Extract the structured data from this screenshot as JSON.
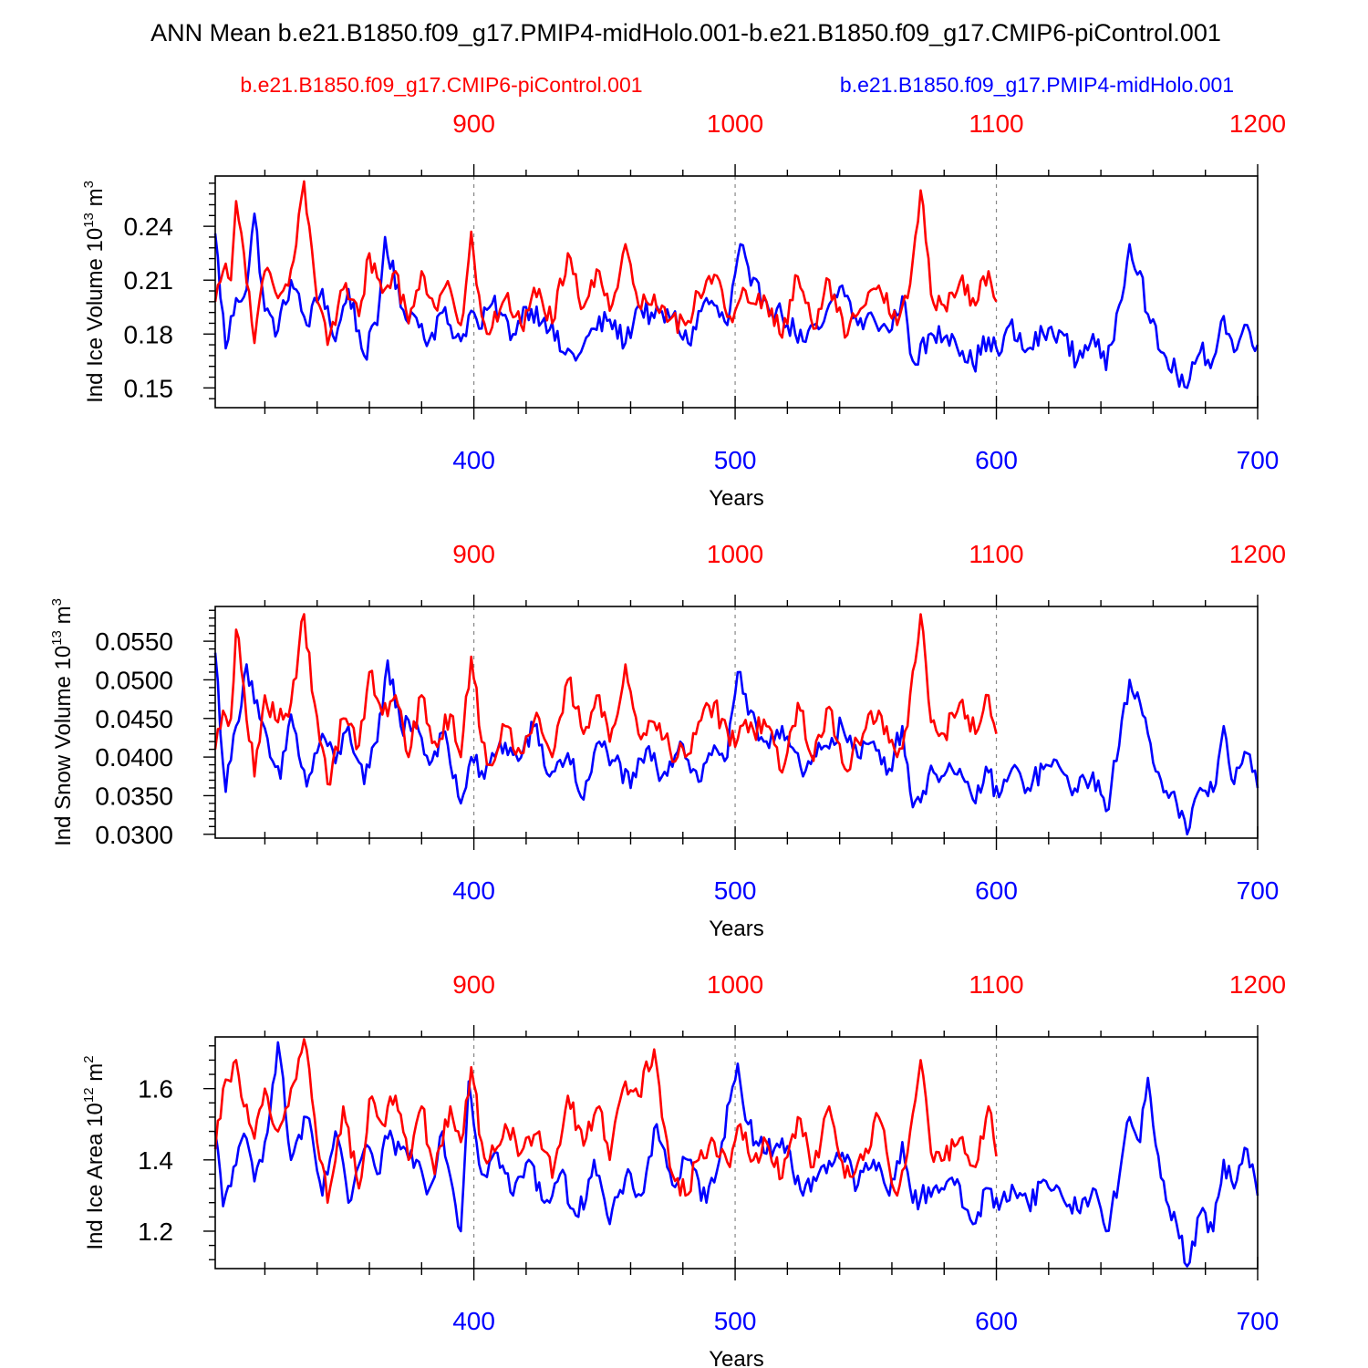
{
  "title": "ANN Mean b.e21.B1850.f09_g17.PMIP4-midHolo.001-b.e21.B1850.f09_g17.CMIP6-piControl.001",
  "legend": {
    "red_case": "b.e21.B1850.f09_g17.CMIP6-piControl.001",
    "blue_case": "b.e21.B1850.f09_g17.PMIP4-midHolo.001"
  },
  "colors": {
    "red": "#ff0000",
    "blue": "#0000ff",
    "axis": "#000000",
    "grid": "#888888"
  },
  "chart_data": [
    {
      "type": "line",
      "ylabel": "Ind Ice Volume",
      "yunit_html": "10<sup>13</sup> m<sup>3</sup>",
      "ylabel_text": "Ind Ice Volume 10^13 m^3",
      "xlabel": "Years",
      "bottom_axis": {
        "range": [
          301,
          700
        ],
        "ticks": [
          400,
          500,
          600,
          700
        ],
        "tick_labels": [
          "400",
          "500",
          "600",
          "700"
        ]
      },
      "top_axis": {
        "range": [
          801,
          1200
        ],
        "ticks": [
          900,
          1000,
          1100,
          1200
        ],
        "tick_labels": [
          "900",
          "1000",
          "1100",
          "1200"
        ]
      },
      "ylim": [
        0.139,
        0.268
      ],
      "yticks": [
        0.15,
        0.18,
        0.21,
        0.24
      ],
      "ytick_labels": [
        "0.15",
        "0.18",
        "0.21",
        "0.24"
      ],
      "series": [
        {
          "name": "b.e21.B1850.f09_g17.PMIP4-midHolo.001",
          "color": "blue",
          "axis": "bottom",
          "anchors_x": [
            301,
            305,
            309,
            313,
            316,
            320,
            325,
            330,
            336,
            342,
            347,
            352,
            358,
            363,
            366,
            372,
            378,
            383,
            388,
            395,
            399,
            402,
            407,
            415,
            420,
            427,
            434,
            440,
            446,
            452,
            458,
            463,
            469,
            476,
            482,
            489,
            497,
            502,
            506,
            511,
            518,
            526,
            533,
            541,
            547,
            553,
            559,
            564,
            568,
            576,
            583,
            591,
            597,
            601,
            605,
            611,
            618,
            624,
            631,
            637,
            642,
            647,
            651,
            655,
            658,
            663,
            669,
            673,
            678,
            683,
            687,
            691,
            696,
            700
          ],
          "anchors_y": [
            0.236,
            0.172,
            0.2,
            0.205,
            0.247,
            0.193,
            0.182,
            0.21,
            0.185,
            0.205,
            0.176,
            0.205,
            0.168,
            0.185,
            0.234,
            0.195,
            0.189,
            0.177,
            0.192,
            0.176,
            0.193,
            0.183,
            0.197,
            0.18,
            0.195,
            0.189,
            0.17,
            0.168,
            0.183,
            0.188,
            0.175,
            0.196,
            0.189,
            0.19,
            0.175,
            0.2,
            0.185,
            0.23,
            0.207,
            0.2,
            0.19,
            0.176,
            0.184,
            0.207,
            0.185,
            0.189,
            0.181,
            0.201,
            0.165,
            0.179,
            0.18,
            0.163,
            0.178,
            0.168,
            0.185,
            0.17,
            0.18,
            0.182,
            0.165,
            0.18,
            0.16,
            0.196,
            0.23,
            0.215,
            0.191,
            0.17,
            0.158,
            0.15,
            0.17,
            0.166,
            0.19,
            0.17,
            0.185,
            0.174
          ]
        },
        {
          "name": "b.e21.B1850.f09_g17.CMIP6-piControl.001",
          "color": "red",
          "axis": "top",
          "anchors_x": [
            801,
            804,
            807,
            809,
            812,
            816,
            820,
            825,
            830,
            835,
            839,
            844,
            850,
            856,
            860,
            865,
            870,
            875,
            880,
            885,
            891,
            895,
            899,
            903,
            906,
            912,
            918,
            925,
            930,
            936,
            942,
            948,
            952,
            958,
            963,
            969,
            975,
            981,
            986,
            992,
            998,
            1002,
            1007,
            1012,
            1018,
            1024,
            1030,
            1036,
            1042,
            1049,
            1055,
            1062,
            1066,
            1071,
            1075,
            1080,
            1086,
            1092,
            1097,
            1100
          ],
          "anchors_y": [
            0.198,
            0.215,
            0.21,
            0.254,
            0.225,
            0.175,
            0.215,
            0.2,
            0.216,
            0.265,
            0.212,
            0.174,
            0.205,
            0.19,
            0.225,
            0.203,
            0.215,
            0.186,
            0.215,
            0.195,
            0.205,
            0.185,
            0.237,
            0.19,
            0.18,
            0.2,
            0.185,
            0.205,
            0.186,
            0.225,
            0.195,
            0.215,
            0.193,
            0.23,
            0.196,
            0.202,
            0.188,
            0.185,
            0.203,
            0.213,
            0.19,
            0.2,
            0.197,
            0.198,
            0.178,
            0.212,
            0.183,
            0.21,
            0.178,
            0.195,
            0.207,
            0.185,
            0.2,
            0.26,
            0.202,
            0.196,
            0.209,
            0.196,
            0.215,
            0.198
          ]
        }
      ]
    },
    {
      "type": "line",
      "ylabel": "Ind Snow Volume",
      "yunit_html": "10<sup>13</sup> m<sup>3</sup>",
      "ylabel_text": "Ind Snow Volume 10^13 m^3",
      "xlabel": "Years",
      "bottom_axis": {
        "range": [
          301,
          700
        ],
        "ticks": [
          400,
          500,
          600,
          700
        ],
        "tick_labels": [
          "400",
          "500",
          "600",
          "700"
        ]
      },
      "top_axis": {
        "range": [
          801,
          1200
        ],
        "ticks": [
          900,
          1000,
          1100,
          1200
        ],
        "tick_labels": [
          "900",
          "1000",
          "1100",
          "1200"
        ]
      },
      "ylim": [
        0.0295,
        0.0595
      ],
      "yticks": [
        0.03,
        0.035,
        0.04,
        0.045,
        0.05,
        0.055
      ],
      "ytick_labels": [
        "0.0300",
        "0.0350",
        "0.0400",
        "0.0450",
        "0.0500",
        "0.0550"
      ],
      "series": [
        {
          "name": "b.e21.B1850.f09_g17.PMIP4-midHolo.001",
          "color": "blue",
          "axis": "bottom",
          "anchors_x": [
            301,
            305,
            309,
            313,
            318,
            322,
            326,
            330,
            336,
            342,
            347,
            352,
            358,
            363,
            367,
            372,
            378,
            383,
            388,
            395,
            399,
            404,
            410,
            417,
            423,
            429,
            436,
            442,
            448,
            454,
            460,
            466,
            472,
            479,
            486,
            492,
            497,
            501,
            505,
            511,
            518,
            526,
            533,
            541,
            547,
            553,
            559,
            564,
            568,
            576,
            583,
            591,
            597,
            601,
            606,
            612,
            619,
            625,
            631,
            637,
            642,
            647,
            651,
            655,
            658,
            663,
            669,
            673,
            678,
            683,
            687,
            691,
            696,
            700
          ],
          "anchors_y": [
            0.0535,
            0.0355,
            0.044,
            0.052,
            0.045,
            0.04,
            0.0372,
            0.0455,
            0.0362,
            0.043,
            0.0392,
            0.044,
            0.0365,
            0.042,
            0.0525,
            0.044,
            0.0445,
            0.039,
            0.0432,
            0.034,
            0.04,
            0.0372,
            0.042,
            0.0395,
            0.044,
            0.0375,
            0.0405,
            0.0345,
            0.042,
            0.0395,
            0.036,
            0.041,
            0.0375,
            0.042,
            0.0368,
            0.0415,
            0.04,
            0.051,
            0.0455,
            0.042,
            0.044,
            0.0375,
            0.041,
            0.044,
            0.04,
            0.042,
            0.0385,
            0.044,
            0.0335,
            0.038,
            0.0385,
            0.0345,
            0.038,
            0.0348,
            0.0385,
            0.036,
            0.039,
            0.0382,
            0.0355,
            0.038,
            0.033,
            0.0415,
            0.05,
            0.047,
            0.043,
            0.037,
            0.034,
            0.03,
            0.036,
            0.0355,
            0.044,
            0.0365,
            0.0405,
            0.036
          ]
        },
        {
          "name": "b.e21.B1850.f09_g17.CMIP6-piControl.001",
          "color": "red",
          "axis": "top",
          "anchors_x": [
            801,
            804,
            807,
            809,
            812,
            816,
            820,
            825,
            830,
            835,
            839,
            844,
            850,
            856,
            860,
            865,
            870,
            875,
            880,
            885,
            891,
            895,
            899,
            903,
            906,
            912,
            918,
            925,
            930,
            936,
            942,
            948,
            952,
            958,
            963,
            969,
            975,
            981,
            986,
            992,
            998,
            1002,
            1007,
            1012,
            1018,
            1024,
            1030,
            1036,
            1042,
            1049,
            1055,
            1062,
            1066,
            1071,
            1075,
            1080,
            1086,
            1092,
            1097,
            1100
          ],
          "anchors_y": [
            0.041,
            0.046,
            0.045,
            0.0565,
            0.049,
            0.0375,
            0.048,
            0.0445,
            0.047,
            0.0585,
            0.047,
            0.0365,
            0.045,
            0.0415,
            0.051,
            0.0455,
            0.048,
            0.04,
            0.048,
            0.042,
            0.0455,
            0.04,
            0.053,
            0.042,
            0.039,
            0.044,
            0.0405,
            0.045,
            0.04,
            0.05,
            0.043,
            0.048,
            0.042,
            0.052,
            0.043,
            0.0445,
            0.041,
            0.04,
            0.0445,
            0.047,
            0.0415,
            0.044,
            0.0435,
            0.044,
            0.038,
            0.047,
            0.0395,
            0.0465,
            0.0385,
            0.043,
            0.046,
            0.04,
            0.044,
            0.0585,
            0.0445,
            0.043,
            0.047,
            0.043,
            0.048,
            0.043
          ]
        }
      ]
    },
    {
      "type": "line",
      "ylabel": "Ind Ice Area",
      "yunit_html": "10<sup>12</sup> m<sup>2</sup>",
      "ylabel_text": "Ind Ice Area 10^12 m^2",
      "xlabel": "Years",
      "bottom_axis": {
        "range": [
          301,
          700
        ],
        "ticks": [
          400,
          500,
          600,
          700
        ],
        "tick_labels": [
          "400",
          "500",
          "600",
          "700"
        ]
      },
      "top_axis": {
        "range": [
          801,
          1200
        ],
        "ticks": [
          900,
          1000,
          1100,
          1200
        ],
        "tick_labels": [
          "900",
          "1000",
          "1100",
          "1200"
        ]
      },
      "ylim": [
        1.095,
        1.745
      ],
      "yticks": [
        1.2,
        1.4,
        1.6
      ],
      "ytick_labels": [
        "1.2",
        "1.4",
        "1.6"
      ],
      "series": [
        {
          "name": "b.e21.B1850.f09_g17.PMIP4-midHolo.001",
          "color": "blue",
          "axis": "bottom",
          "anchors_x": [
            301,
            304,
            308,
            313,
            316,
            320,
            325,
            330,
            336,
            342,
            347,
            352,
            358,
            363,
            367,
            372,
            378,
            383,
            388,
            395,
            398,
            403,
            409,
            415,
            421,
            427,
            433,
            440,
            446,
            452,
            458,
            464,
            470,
            476,
            482,
            489,
            495,
            501,
            505,
            511,
            518,
            526,
            533,
            541,
            547,
            553,
            559,
            564,
            568,
            576,
            583,
            591,
            597,
            601,
            606,
            612,
            619,
            625,
            631,
            637,
            642,
            647,
            651,
            655,
            658,
            663,
            669,
            673,
            678,
            683,
            687,
            691,
            696,
            700
          ],
          "anchors_y": [
            1.48,
            1.27,
            1.38,
            1.46,
            1.34,
            1.45,
            1.73,
            1.4,
            1.52,
            1.3,
            1.48,
            1.28,
            1.43,
            1.36,
            1.46,
            1.43,
            1.4,
            1.32,
            1.48,
            1.2,
            1.62,
            1.36,
            1.42,
            1.3,
            1.4,
            1.28,
            1.36,
            1.24,
            1.4,
            1.22,
            1.35,
            1.3,
            1.5,
            1.33,
            1.4,
            1.28,
            1.45,
            1.67,
            1.5,
            1.42,
            1.46,
            1.3,
            1.38,
            1.42,
            1.33,
            1.4,
            1.3,
            1.45,
            1.28,
            1.32,
            1.35,
            1.22,
            1.32,
            1.26,
            1.33,
            1.28,
            1.34,
            1.3,
            1.26,
            1.32,
            1.2,
            1.35,
            1.52,
            1.45,
            1.63,
            1.35,
            1.22,
            1.1,
            1.25,
            1.2,
            1.4,
            1.32,
            1.43,
            1.3
          ]
        },
        {
          "name": "b.e21.B1850.f09_g17.CMIP6-piControl.001",
          "color": "red",
          "axis": "top",
          "anchors_x": [
            801,
            804,
            807,
            809,
            812,
            816,
            820,
            825,
            830,
            835,
            839,
            844,
            850,
            856,
            860,
            865,
            870,
            875,
            880,
            885,
            891,
            895,
            899,
            903,
            906,
            912,
            918,
            925,
            930,
            936,
            942,
            948,
            952,
            958,
            963,
            969,
            975,
            981,
            986,
            992,
            998,
            1002,
            1007,
            1012,
            1018,
            1024,
            1030,
            1036,
            1042,
            1049,
            1055,
            1062,
            1066,
            1071,
            1075,
            1080,
            1086,
            1092,
            1097,
            1100
          ],
          "anchors_y": [
            1.43,
            1.6,
            1.62,
            1.68,
            1.55,
            1.46,
            1.6,
            1.48,
            1.6,
            1.74,
            1.52,
            1.28,
            1.55,
            1.32,
            1.57,
            1.5,
            1.58,
            1.4,
            1.55,
            1.36,
            1.55,
            1.45,
            1.66,
            1.45,
            1.4,
            1.5,
            1.42,
            1.48,
            1.35,
            1.58,
            1.44,
            1.55,
            1.4,
            1.62,
            1.58,
            1.71,
            1.38,
            1.3,
            1.4,
            1.45,
            1.38,
            1.5,
            1.4,
            1.45,
            1.35,
            1.52,
            1.38,
            1.55,
            1.35,
            1.4,
            1.52,
            1.3,
            1.42,
            1.68,
            1.42,
            1.4,
            1.46,
            1.38,
            1.55,
            1.41
          ]
        }
      ]
    }
  ]
}
